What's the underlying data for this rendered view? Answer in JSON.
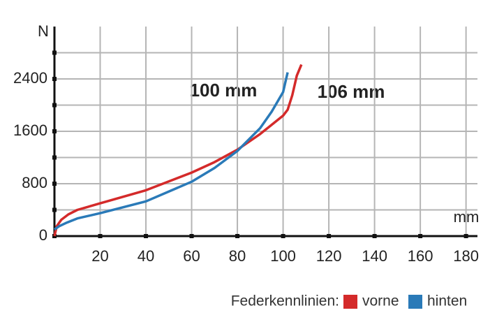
{
  "chart_data": {
    "type": "line",
    "y_label": "N",
    "x_label": "mm",
    "annotations": [
      "100 mm",
      "106 mm"
    ],
    "legend_title": "Federkennlinien:",
    "xlim": [
      0,
      185
    ],
    "ylim": [
      0,
      3200
    ],
    "xticks": [
      20,
      40,
      60,
      80,
      100,
      120,
      140,
      160,
      180
    ],
    "yticks": [
      0,
      800,
      1600,
      2400
    ],
    "y_minor_ticks": [
      400,
      1200,
      2000,
      2800
    ],
    "grid": true,
    "series": [
      {
        "name": "vorne",
        "color": "#d42a2a",
        "x": [
          0,
          1,
          3,
          6,
          10,
          20,
          40,
          60,
          70,
          80,
          90,
          100,
          102,
          104,
          106,
          108
        ],
        "values": [
          0,
          150,
          250,
          330,
          400,
          500,
          700,
          970,
          1130,
          1320,
          1560,
          1840,
          1930,
          2150,
          2450,
          2620
        ]
      },
      {
        "name": "hinten",
        "color": "#2a7ab8",
        "x": [
          0,
          2,
          5,
          10,
          20,
          40,
          60,
          70,
          80,
          90,
          95,
          100,
          101,
          102
        ],
        "values": [
          100,
          150,
          200,
          270,
          350,
          530,
          830,
          1040,
          1300,
          1650,
          1900,
          2200,
          2350,
          2500
        ]
      }
    ]
  }
}
